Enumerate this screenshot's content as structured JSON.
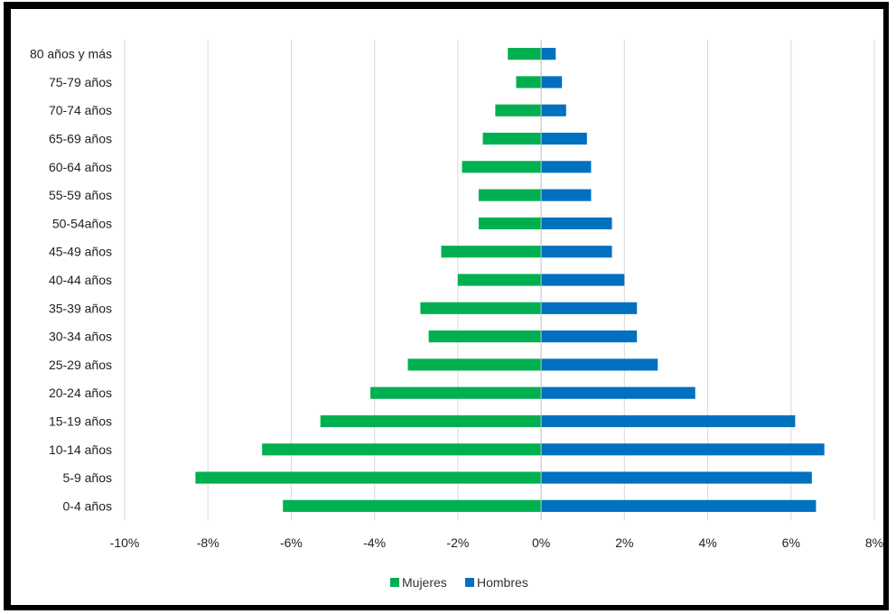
{
  "chart_data": {
    "type": "bar",
    "orientation": "horizontal",
    "title": "",
    "xlabel": "",
    "ylabel": "",
    "categories": [
      "0-4 años",
      "5-9 años",
      "10-14 años",
      "15-19 años",
      "20-24 años",
      "25-29 años",
      "30-34 años",
      "35-39 años",
      "40-44 años",
      "45-49 años",
      "50-54años",
      "55-59 años",
      "60-64 años",
      "65-69 años",
      "70-74 años",
      "75-79 años",
      "80 años y más"
    ],
    "series": [
      {
        "name": "Mujeres",
        "color": "#00b050",
        "values": [
          -6.2,
          -8.3,
          -6.7,
          -5.3,
          -4.1,
          -3.2,
          -2.7,
          -2.9,
          -2.0,
          -2.4,
          -1.5,
          -1.5,
          -1.9,
          -1.4,
          -1.1,
          -0.6,
          -0.8
        ]
      },
      {
        "name": "Hombres",
        "color": "#0070c0",
        "values": [
          6.6,
          6.5,
          6.8,
          6.1,
          3.7,
          2.8,
          2.3,
          2.3,
          2.0,
          1.7,
          1.7,
          1.2,
          1.2,
          1.1,
          0.6,
          0.5,
          0.35
        ]
      }
    ],
    "xlim": [
      -10,
      8
    ],
    "xticks": [
      -10,
      -8,
      -6,
      -4,
      -2,
      0,
      2,
      4,
      6,
      8
    ],
    "xtick_labels": [
      "-10%",
      "-8%",
      "-6%",
      "-4%",
      "-2%",
      "0%",
      "2%",
      "4%",
      "6%",
      "8%"
    ],
    "grid": true,
    "legend_position": "bottom"
  },
  "colors": {
    "gridline": "#d9d9d9",
    "axis": "#bfbfbf",
    "frame": "#000000"
  }
}
